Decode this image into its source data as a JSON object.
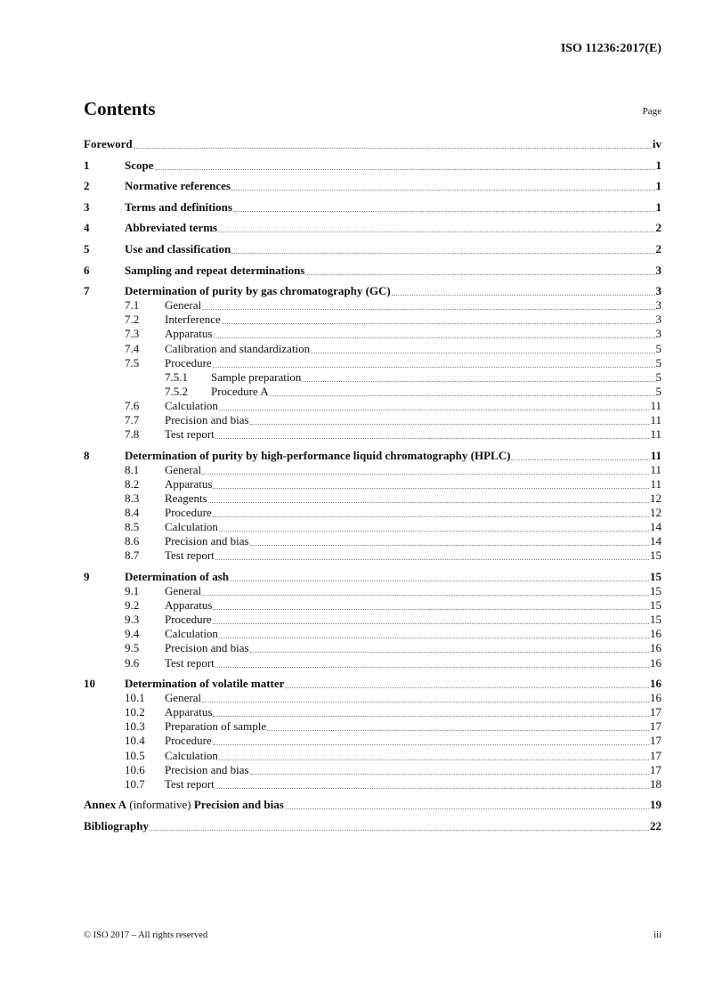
{
  "header": {
    "doc_id": "ISO 11236:2017(E)"
  },
  "contents_title": "Contents",
  "page_label": "Page",
  "toc": [
    {
      "level": 0,
      "num": "",
      "title": "Foreword",
      "page": "iv"
    },
    {
      "level": 1,
      "num": "1",
      "title": "Scope",
      "page": "1"
    },
    {
      "level": 1,
      "num": "2",
      "title": "Normative references",
      "page": "1"
    },
    {
      "level": 1,
      "num": "3",
      "title": "Terms and definitions",
      "page": "1"
    },
    {
      "level": 1,
      "num": "4",
      "title": "Abbreviated terms",
      "page": "2"
    },
    {
      "level": 1,
      "num": "5",
      "title": "Use and classification",
      "page": "2"
    },
    {
      "level": 1,
      "num": "6",
      "title": "Sampling and repeat determinations",
      "page": "3"
    },
    {
      "level": 1,
      "num": "7",
      "title": "Determination of purity by gas chromatography (GC)",
      "page": "3"
    },
    {
      "level": 2,
      "num": "7.1",
      "title": "General",
      "page": "3"
    },
    {
      "level": 2,
      "num": "7.2",
      "title": "Interference",
      "page": "3"
    },
    {
      "level": 2,
      "num": "7.3",
      "title": "Apparatus",
      "page": "3"
    },
    {
      "level": 2,
      "num": "7.4",
      "title": "Calibration and standardization",
      "page": "5"
    },
    {
      "level": 2,
      "num": "7.5",
      "title": "Procedure",
      "page": "5"
    },
    {
      "level": 3,
      "num": "7.5.1",
      "title": "Sample preparation",
      "page": "5"
    },
    {
      "level": 3,
      "num": "7.5.2",
      "title": "Procedure A",
      "page": "5"
    },
    {
      "level": 2,
      "num": "7.6",
      "title": "Calculation",
      "page": "11"
    },
    {
      "level": 2,
      "num": "7.7",
      "title": "Precision and bias",
      "page": "11"
    },
    {
      "level": 2,
      "num": "7.8",
      "title": "Test report",
      "page": "11"
    },
    {
      "level": 1,
      "num": "8",
      "title": "Determination of purity by high-performance liquid chromatography (HPLC)",
      "page": "11"
    },
    {
      "level": 2,
      "num": "8.1",
      "title": "General",
      "page": "11"
    },
    {
      "level": 2,
      "num": "8.2",
      "title": "Apparatus",
      "page": "11"
    },
    {
      "level": 2,
      "num": "8.3",
      "title": "Reagents",
      "page": "12"
    },
    {
      "level": 2,
      "num": "8.4",
      "title": "Procedure",
      "page": "12"
    },
    {
      "level": 2,
      "num": "8.5",
      "title": "Calculation",
      "page": "14"
    },
    {
      "level": 2,
      "num": "8.6",
      "title": "Precision and bias",
      "page": "14"
    },
    {
      "level": 2,
      "num": "8.7",
      "title": "Test report",
      "page": "15"
    },
    {
      "level": 1,
      "num": "9",
      "title": "Determination of ash",
      "page": "15"
    },
    {
      "level": 2,
      "num": "9.1",
      "title": "General",
      "page": "15"
    },
    {
      "level": 2,
      "num": "9.2",
      "title": "Apparatus",
      "page": "15"
    },
    {
      "level": 2,
      "num": "9.3",
      "title": "Procedure",
      "page": "15"
    },
    {
      "level": 2,
      "num": "9.4",
      "title": "Calculation",
      "page": "16"
    },
    {
      "level": 2,
      "num": "9.5",
      "title": "Precision and bias",
      "page": "16"
    },
    {
      "level": 2,
      "num": "9.6",
      "title": "Test report",
      "page": "16"
    },
    {
      "level": 1,
      "num": "10",
      "title": "Determination of volatile matter",
      "page": "16"
    },
    {
      "level": 2,
      "num": "10.1",
      "title": "General",
      "page": "16"
    },
    {
      "level": 2,
      "num": "10.2",
      "title": "Apparatus",
      "page": "17"
    },
    {
      "level": 2,
      "num": "10.3",
      "title": "Preparation of sample",
      "page": "17"
    },
    {
      "level": 2,
      "num": "10.4",
      "title": "Procedure",
      "page": "17"
    },
    {
      "level": 2,
      "num": "10.5",
      "title": "Calculation",
      "page": "17"
    },
    {
      "level": 2,
      "num": "10.6",
      "title": "Precision and bias",
      "page": "17"
    },
    {
      "level": 2,
      "num": "10.7",
      "title": "Test report",
      "page": "18"
    },
    {
      "level": 0,
      "num": "",
      "title": "Annex A",
      "title_note": " (informative) ",
      "title_rest": "Precision and bias",
      "page": "19"
    },
    {
      "level": 0,
      "num": "",
      "title": "Bibliography",
      "page": "22"
    }
  ],
  "footer": {
    "copyright": "© ISO 2017 – All rights reserved",
    "page_number": "iii"
  }
}
